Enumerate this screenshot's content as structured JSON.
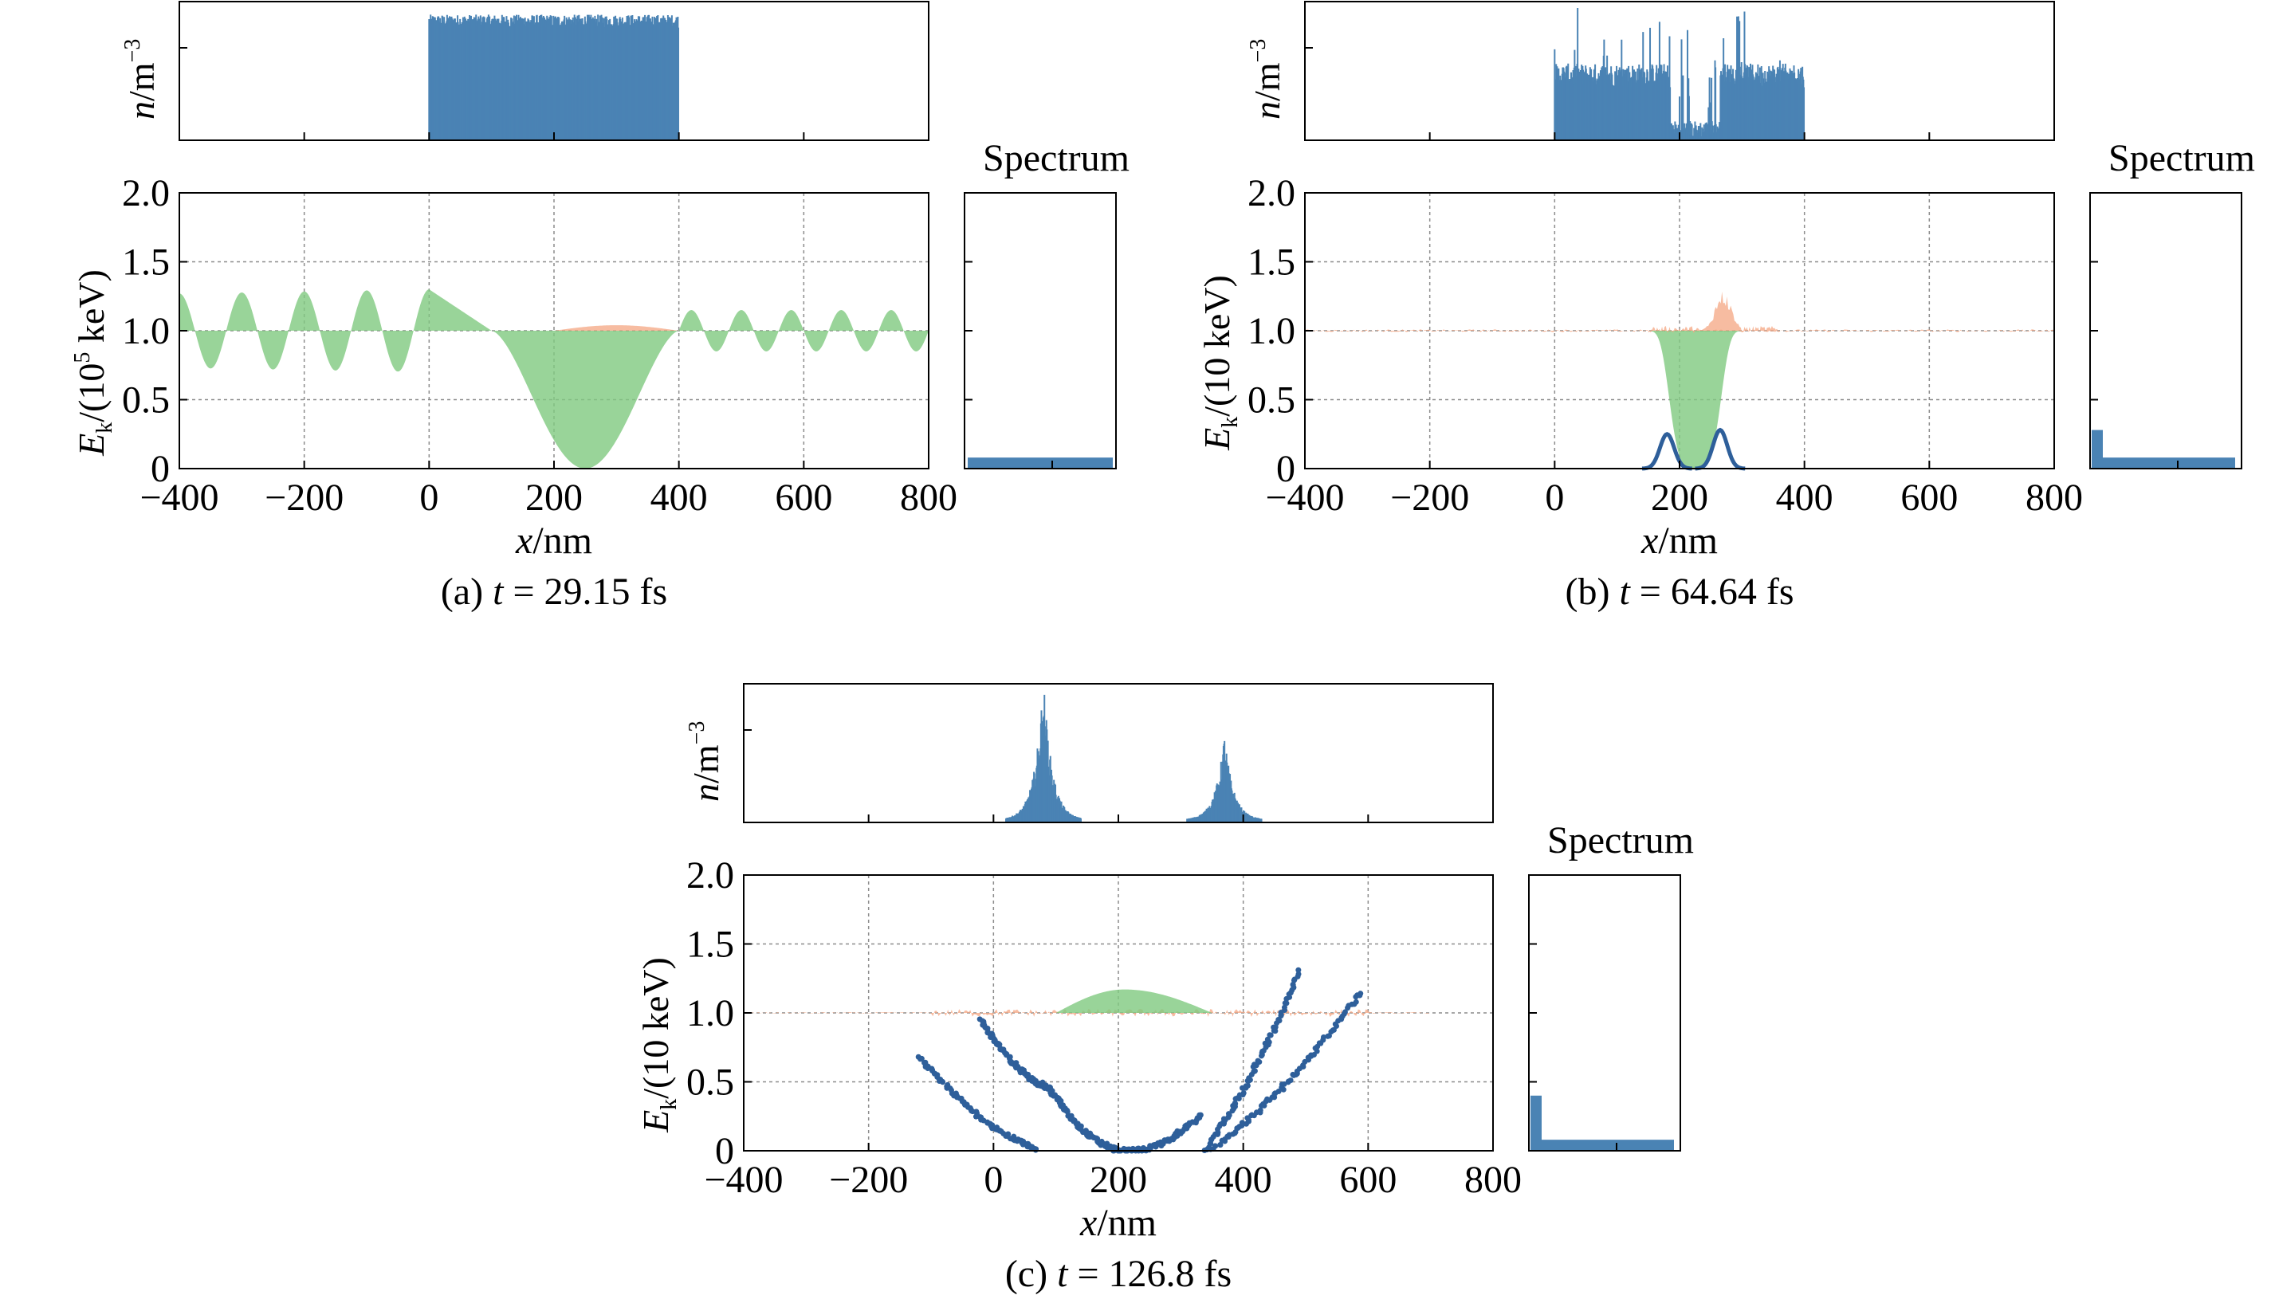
{
  "colors": {
    "density": "#4a83b4",
    "field": "#7fc97f",
    "energy_orange": "#f4a582",
    "particles": "#2e5f9a",
    "grid": "#8c8c8c",
    "frame": "#000000"
  },
  "common": {
    "x_label_var": "x",
    "x_label_unit": "/nm",
    "x_ticks": [
      "−400",
      "−200",
      "0",
      "200",
      "400",
      "600",
      "800"
    ],
    "y_ticks": [
      "0",
      "0.5",
      "1.0",
      "1.5",
      "2.0"
    ],
    "density_label_var": "n",
    "density_label_unit": "/m",
    "density_label_exp": "−3",
    "energy_label_var": "E",
    "energy_label_sub": "k",
    "spectrum_title": "Spectrum"
  },
  "panels": [
    {
      "id": "a",
      "caption_prefix": "(a) ",
      "caption_var": "t",
      "caption_rest": " = 29.15 fs",
      "energy_label_rest": "/(10",
      "energy_label_exp": "5",
      "energy_label_end": " keV)"
    },
    {
      "id": "b",
      "caption_prefix": "(b) ",
      "caption_var": "t",
      "caption_rest": " = 64.64 fs",
      "energy_label_rest": "/(10  keV)",
      "energy_label_exp": "",
      "energy_label_end": ""
    },
    {
      "id": "c",
      "caption_prefix": "(c) ",
      "caption_var": "t",
      "caption_rest": " = 126.8 fs",
      "energy_label_rest": "/(10  keV)",
      "energy_label_exp": "",
      "energy_label_end": ""
    }
  ],
  "chart_data": [
    {
      "type": "area",
      "panel": "a",
      "xlim": [
        -400,
        800
      ],
      "ylim": [
        0,
        2.0
      ],
      "grid": true,
      "density": {
        "x": [
          0,
          400
        ],
        "shape": "flat-top",
        "relative_level": 0.9
      },
      "field_wave": {
        "baseline": 1.0,
        "x_start": -400,
        "x_end": 0,
        "wavelength": 100,
        "amplitude_start": 0.27,
        "amplitude_end": 0.3
      },
      "field_dip": {
        "x": [
          100,
          400
        ],
        "min_x": 250,
        "min_y": 0.0,
        "baseline": 1.0
      },
      "field_wave_after": {
        "x_start": 400,
        "x_end": 800,
        "wavelength": 80,
        "amplitude": 0.15,
        "baseline": 1.0
      },
      "orange_bump": {
        "x": [
          200,
          400
        ],
        "peak_x": 300,
        "peak_y": 1.04
      },
      "spectrum": {
        "levels": [
          0.08
        ],
        "ylim": [
          0,
          2.0
        ]
      }
    },
    {
      "type": "area",
      "panel": "b",
      "xlim": [
        -400,
        800
      ],
      "ylim": [
        0,
        2.0
      ],
      "grid": true,
      "density": {
        "x": [
          0,
          400
        ],
        "shape": "noisy with central gap",
        "gap_x": [
          185,
          265
        ]
      },
      "field_dip": {
        "x": [
          150,
          360
        ],
        "min_x": 225,
        "min_y": 0.0,
        "baseline": 1.0
      },
      "orange_bump": {
        "x": [
          200,
          300
        ],
        "peak_x": 270,
        "peak_y": 1.25
      },
      "particle_bumps": [
        {
          "center_x": 180,
          "peak_y": 0.25
        },
        {
          "center_x": 265,
          "peak_y": 0.28
        }
      ],
      "spectrum": {
        "levels": [
          0.28,
          0.08
        ],
        "ylim": [
          0,
          2.0
        ]
      }
    },
    {
      "type": "scatter",
      "panel": "c",
      "xlim": [
        -400,
        800
      ],
      "ylim": [
        0,
        2.0
      ],
      "grid": true,
      "density_peaks": [
        {
          "center_x": 80,
          "relative_height": 0.9
        },
        {
          "center_x": 370,
          "relative_height": 0.55
        }
      ],
      "field_bump": {
        "x": [
          100,
          350
        ],
        "peak_x": 210,
        "peak_y": 1.17,
        "baseline": 1.0
      },
      "particles": [
        {
          "from": [
            -120,
            0.68
          ],
          "to": [
            70,
            0.0
          ]
        },
        {
          "from": [
            -20,
            0.95
          ],
          "to": [
            90,
            0.45
          ]
        },
        {
          "from": [
            90,
            0.45
          ],
          "to": [
            200,
            0.0
          ]
        },
        {
          "from": [
            200,
            0.0
          ],
          "to": [
            330,
            0.25
          ]
        },
        {
          "from": [
            340,
            0.0
          ],
          "to": [
            490,
            1.3
          ]
        },
        {
          "from": [
            350,
            0.0
          ],
          "to": [
            590,
            1.15
          ]
        }
      ],
      "spectrum": {
        "levels": [
          0.4,
          0.08
        ],
        "ylim": [
          0,
          2.0
        ]
      }
    }
  ]
}
